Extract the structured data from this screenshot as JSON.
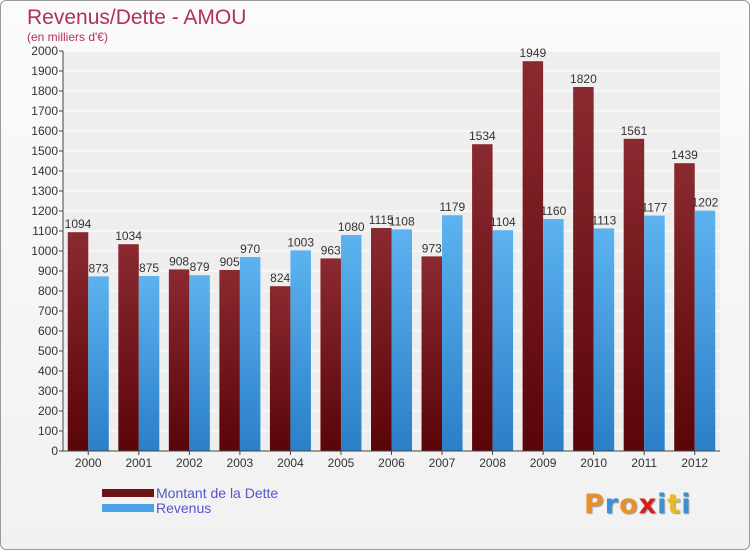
{
  "header": {
    "title": "Revenus/Dette - AMOU",
    "subtitle": "(en milliers d'€)"
  },
  "legend": {
    "items": [
      {
        "label": "Montant de la Dette",
        "color": "#6b1216"
      },
      {
        "label": "Revenus",
        "color": "#4aa3e6"
      }
    ]
  },
  "logo": {
    "text": "Proxiti",
    "colors": [
      "#e8902c",
      "#3a8fd6",
      "#e8902c",
      "#d02020",
      "#3a8fd6",
      "#e8b82c",
      "#3a8fd6"
    ]
  },
  "chart_data": {
    "type": "bar",
    "title": "Revenus/Dette - AMOU",
    "subtitle": "(en milliers d'€)",
    "categories": [
      "2000",
      "2001",
      "2002",
      "2003",
      "2004",
      "2005",
      "2006",
      "2007",
      "2008",
      "2009",
      "2010",
      "2011",
      "2012"
    ],
    "series": [
      {
        "name": "Montant de la Dette",
        "color": "#6b1216",
        "values": [
          1094,
          1034,
          908,
          905,
          824,
          963,
          1115,
          973,
          1534,
          1949,
          1820,
          1561,
          1439
        ]
      },
      {
        "name": "Revenus",
        "color": "#4aa3e6",
        "values": [
          873,
          875,
          879,
          970,
          1003,
          1080,
          1108,
          1179,
          1104,
          1160,
          1113,
          1177,
          1202
        ]
      }
    ],
    "ylim": [
      0,
      2000
    ],
    "yticks": [
      0,
      100,
      200,
      300,
      400,
      500,
      600,
      700,
      800,
      900,
      1000,
      1100,
      1200,
      1300,
      1400,
      1500,
      1600,
      1700,
      1800,
      1900,
      2000
    ],
    "grid": true,
    "legend_position": "bottom-left"
  }
}
